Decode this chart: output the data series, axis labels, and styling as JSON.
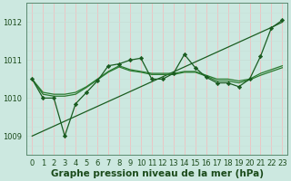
{
  "x": [
    0,
    1,
    2,
    3,
    4,
    5,
    6,
    7,
    8,
    9,
    10,
    11,
    12,
    13,
    14,
    15,
    16,
    17,
    18,
    19,
    20,
    21,
    22,
    23
  ],
  "line_jagged": [
    1010.5,
    1010.0,
    1010.0,
    1009.0,
    1009.85,
    1010.15,
    1010.45,
    1010.85,
    1010.9,
    1011.0,
    1011.05,
    1010.5,
    1010.5,
    1010.65,
    1011.15,
    1010.8,
    1010.55,
    1010.4,
    1010.4,
    1010.3,
    1010.5,
    1011.1,
    1011.85,
    1012.05
  ],
  "line_smooth": [
    1010.5,
    1010.15,
    1010.1,
    1010.1,
    1010.15,
    1010.3,
    1010.5,
    1010.7,
    1010.85,
    1010.75,
    1010.7,
    1010.65,
    1010.65,
    1010.65,
    1010.7,
    1010.7,
    1010.6,
    1010.5,
    1010.5,
    1010.45,
    1010.5,
    1010.65,
    1010.75,
    1010.85
  ],
  "line_smooth2": [
    1010.5,
    1010.1,
    1010.05,
    1010.05,
    1010.1,
    1010.28,
    1010.48,
    1010.68,
    1010.82,
    1010.72,
    1010.68,
    1010.62,
    1010.62,
    1010.62,
    1010.68,
    1010.68,
    1010.58,
    1010.45,
    1010.45,
    1010.4,
    1010.48,
    1010.6,
    1010.7,
    1010.8
  ],
  "line_diagonal": [
    1009.0,
    1009.13,
    1009.26,
    1009.39,
    1009.52,
    1009.65,
    1009.78,
    1009.91,
    1010.04,
    1010.17,
    1010.3,
    1010.43,
    1010.56,
    1010.69,
    1010.82,
    1010.95,
    1011.08,
    1011.21,
    1011.34,
    1011.47,
    1011.6,
    1011.73,
    1011.86,
    1012.0
  ],
  "bg_color": "#cce8e0",
  "grid_color_v": "#f0c0c0",
  "grid_color_h": "#c8e0d8",
  "line_color_jagged": "#1a5c20",
  "line_color_smooth": "#2a7a30",
  "line_color_smooth2": "#2a7a30",
  "line_color_diag": "#1a5c20",
  "xlabel": "Graphe pression niveau de la mer (hPa)",
  "ylim": [
    1008.5,
    1012.5
  ],
  "xlim": [
    -0.5,
    23.5
  ],
  "yticks": [
    1009,
    1010,
    1011,
    1012
  ],
  "xticks": [
    0,
    1,
    2,
    3,
    4,
    5,
    6,
    7,
    8,
    9,
    10,
    11,
    12,
    13,
    14,
    15,
    16,
    17,
    18,
    19,
    20,
    21,
    22,
    23
  ],
  "tick_color": "#1a4a1a",
  "font_size_label": 7.5,
  "font_size_tick": 6.0
}
